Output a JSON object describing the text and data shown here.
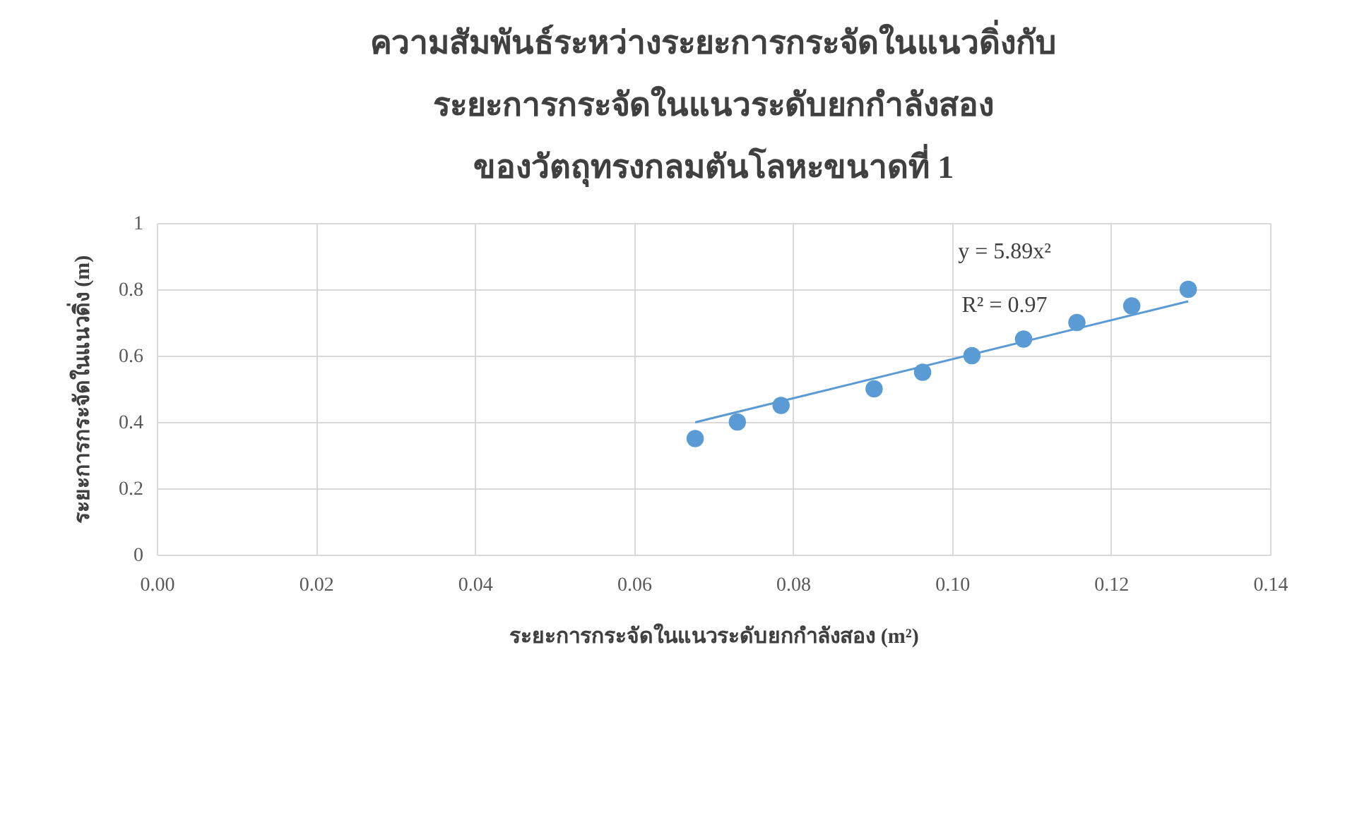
{
  "chart_data": {
    "type": "scatter",
    "title": "ความสัมพันธ์ระหว่างระยะการกระจัดในแนวดิ่งกับ\nระยะการกระจัดในแนวระดับยกกำลังสอง\nของวัตถุทรงกลมตันโลหะขนาดที่ 1",
    "xlabel": "ระยะการกระจัดในแนวระดับยกกำลังสอง (m²)",
    "ylabel": "ระยะการกระจัดในแนวดิ่ง (m)",
    "annotations": [
      "y = 5.89x²",
      "R² = 0.97"
    ],
    "series": [
      {
        "marker": "circle",
        "color": "#5b9bd5",
        "x": [
          0.0677,
          0.073,
          0.0785,
          0.0902,
          0.0963,
          0.1025,
          0.109,
          0.1157,
          0.1226,
          0.1297
        ],
        "values": [
          0.35,
          0.4,
          0.45,
          0.5,
          0.55,
          0.6,
          0.65,
          0.7,
          0.75,
          0.8
        ]
      },
      {
        "type": "line",
        "marker": "none",
        "color": "#5b9bd5",
        "x": [
          0.0677,
          0.1297
        ],
        "values": [
          0.399,
          0.764
        ]
      }
    ],
    "xlim": [
      0,
      0.14
    ],
    "xticks": [
      {
        "value": 0,
        "label": "0.00"
      },
      {
        "value": 0.02,
        "label": "0.02"
      },
      {
        "value": 0.04,
        "label": "0.04"
      },
      {
        "value": 0.06,
        "label": "0.06"
      },
      {
        "value": 0.08,
        "label": "0.08"
      },
      {
        "value": 0.1,
        "label": "0.10"
      },
      {
        "value": 0.12,
        "label": "0.12"
      },
      {
        "value": 0.14,
        "label": "0.14"
      }
    ],
    "ylim": [
      0,
      1
    ],
    "yticks": [
      0,
      0.2,
      0.4,
      0.6,
      0.8,
      1
    ],
    "grid": true
  }
}
